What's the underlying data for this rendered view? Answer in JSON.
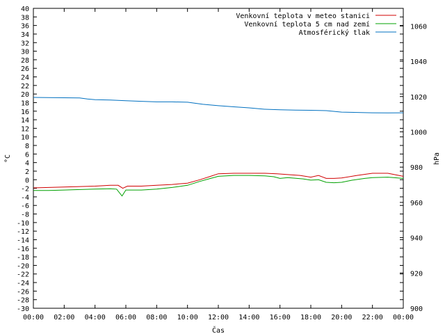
{
  "chart_data": {
    "type": "line",
    "xlabel": "Čas",
    "ylabel": "°C",
    "y2label": "hPa",
    "ylim": [
      -30,
      40
    ],
    "y2lim": [
      900,
      1070
    ],
    "xlim": [
      0,
      24
    ],
    "yticks": [
      "-30",
      "-28",
      "-26",
      "-24",
      "-22",
      "-20",
      "-18",
      "-16",
      "-14",
      "-12",
      "-10",
      "-8",
      "-6",
      "-4",
      "-2",
      "0",
      "2",
      "4",
      "6",
      "8",
      "10",
      "12",
      "14",
      "16",
      "18",
      "20",
      "22",
      "24",
      "26",
      "28",
      "30",
      "32",
      "34",
      "36",
      "38",
      "40"
    ],
    "y2ticks": [
      "900",
      "920",
      "940",
      "960",
      "980",
      "1000",
      "1020",
      "1040",
      "1060"
    ],
    "xticks": [
      "00:00",
      "02:00",
      "04:00",
      "06:00",
      "08:00",
      "10:00",
      "12:00",
      "14:00",
      "16:00",
      "18:00",
      "20:00",
      "22:00",
      "00:00"
    ],
    "grid": false,
    "legend": "top-right",
    "series": [
      {
        "name": "Venkovní teplota v meteo stanici",
        "color": "#d00000",
        "axis": "y",
        "x": [
          0,
          1,
          2,
          3,
          4,
          5,
          5.5,
          5.8,
          6.1,
          7,
          8,
          9,
          10,
          10.8,
          11.5,
          12,
          13,
          14,
          15,
          15.8,
          16.5,
          17.3,
          18,
          18.5,
          19,
          19.5,
          20,
          21,
          22,
          23,
          24
        ],
        "y": [
          -1.9,
          -1.8,
          -1.7,
          -1.6,
          -1.5,
          -1.3,
          -1.3,
          -2.0,
          -1.5,
          -1.5,
          -1.3,
          -1.1,
          -0.8,
          0.0,
          0.8,
          1.4,
          1.5,
          1.5,
          1.5,
          1.4,
          1.2,
          1.0,
          0.6,
          1.0,
          0.3,
          0.3,
          0.4,
          1.0,
          1.5,
          1.5,
          0.8
        ]
      },
      {
        "name": "Venkovní teplota 5 cm nad zemí",
        "color": "#00a000",
        "axis": "y",
        "x": [
          0,
          1,
          2,
          3,
          4,
          5,
          5.4,
          5.75,
          6.0,
          7,
          8,
          9,
          10,
          10.8,
          11.5,
          12,
          13,
          14,
          15,
          15.6,
          16,
          16.5,
          17.5,
          18,
          18.5,
          19,
          19.5,
          20,
          20.7,
          21.5,
          22,
          23,
          24
        ],
        "y": [
          -2.5,
          -2.5,
          -2.4,
          -2.3,
          -2.2,
          -2.1,
          -2.2,
          -3.8,
          -2.4,
          -2.4,
          -2.2,
          -1.8,
          -1.3,
          -0.4,
          0.3,
          0.8,
          1.0,
          1.0,
          0.9,
          0.7,
          0.3,
          0.5,
          0.2,
          -0.1,
          0.0,
          -0.6,
          -0.7,
          -0.6,
          -0.1,
          0.3,
          0.5,
          0.6,
          0.3
        ]
      },
      {
        "name": "Atmosférický tlak",
        "color": "#0070c0",
        "axis": "y2",
        "x": [
          0,
          1,
          2,
          3,
          3.5,
          4,
          5,
          6,
          7,
          8,
          9,
          10,
          11,
          12,
          13,
          14,
          15,
          16,
          17,
          18,
          19,
          20,
          21,
          22,
          23,
          24
        ],
        "y": [
          1019.5,
          1019.4,
          1019.3,
          1019.2,
          1018.6,
          1018.2,
          1018.0,
          1017.6,
          1017.3,
          1017.0,
          1017.0,
          1016.8,
          1015.6,
          1014.8,
          1014.2,
          1013.6,
          1012.8,
          1012.5,
          1012.3,
          1012.2,
          1012.0,
          1011.2,
          1011.0,
          1010.8,
          1010.7,
          1010.8
        ]
      }
    ]
  }
}
